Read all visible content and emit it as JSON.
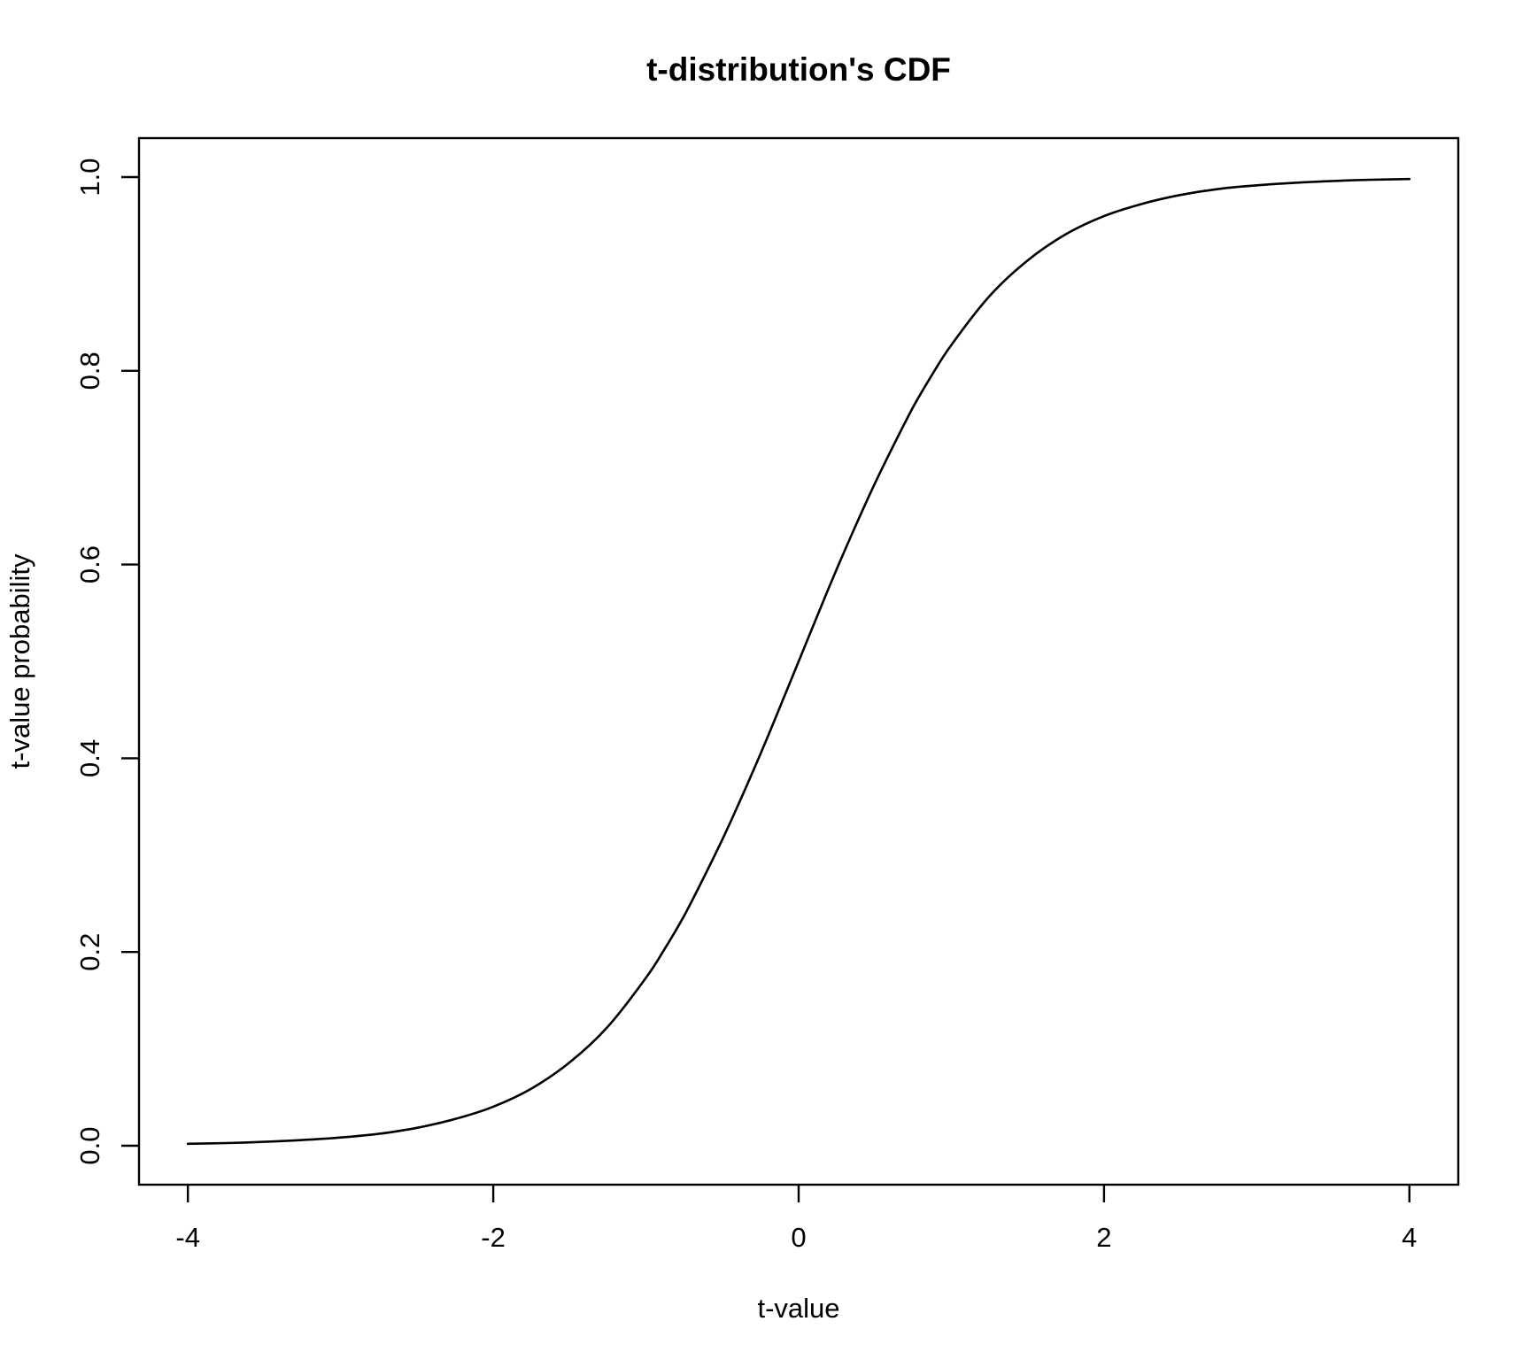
{
  "chart_data": {
    "type": "line",
    "title": "t-distribution's CDF",
    "xlabel": "t-value",
    "ylabel": "t-value probability",
    "x_ticks": {
      "values": [
        -4,
        -2,
        0,
        2,
        4
      ],
      "labels": [
        "-4",
        "-2",
        "0",
        "2",
        "4"
      ]
    },
    "y_ticks": {
      "values": [
        0.0,
        0.2,
        0.4,
        0.6,
        0.8,
        1.0
      ],
      "labels": [
        "0.0",
        "0.2",
        "0.4",
        "0.6",
        "0.8",
        "1.0"
      ]
    },
    "xlim": [
      -4.32,
      4.32
    ],
    "ylim": [
      -0.0402,
      1.0402
    ],
    "grid": false,
    "legend": null,
    "line_color": "#000000",
    "text_color": "#000000",
    "background_color": "#ffffff",
    "series": [
      {
        "name": "t-distribution CDF",
        "x": [
          -4.0,
          -3.75,
          -3.5,
          -3.25,
          -3.0,
          -2.75,
          -2.5,
          -2.25,
          -2.0,
          -1.75,
          -1.5,
          -1.25,
          -1.0,
          -0.875,
          -0.75,
          -0.625,
          -0.5,
          -0.375,
          -0.25,
          -0.125,
          0.0,
          0.125,
          0.25,
          0.375,
          0.5,
          0.625,
          0.75,
          0.875,
          1.0,
          1.25,
          1.5,
          1.75,
          2.0,
          2.25,
          2.5,
          2.75,
          3.0,
          3.25,
          3.5,
          3.75,
          4.0
        ],
        "y": [
          0.002,
          0.0028,
          0.004,
          0.0059,
          0.0085,
          0.0123,
          0.0185,
          0.0276,
          0.0403,
          0.059,
          0.086,
          0.1229,
          0.1733,
          0.2038,
          0.2374,
          0.2758,
          0.3161,
          0.3592,
          0.4045,
          0.4517,
          0.5,
          0.5483,
          0.5955,
          0.6408,
          0.6839,
          0.7242,
          0.7626,
          0.7962,
          0.8267,
          0.8771,
          0.914,
          0.941,
          0.9597,
          0.9724,
          0.9815,
          0.9877,
          0.9915,
          0.9941,
          0.996,
          0.9972,
          0.998
        ]
      }
    ]
  }
}
